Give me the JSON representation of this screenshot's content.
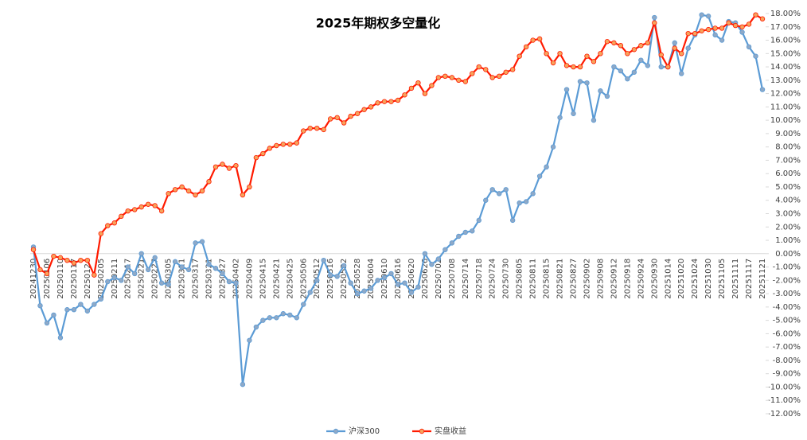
{
  "chart_data": {
    "type": "line",
    "title": "2025年期权多空量化",
    "categories": [
      "20241230",
      null,
      "20250106",
      null,
      "20250110",
      null,
      "20250117",
      null,
      "20250124",
      null,
      "20250205",
      null,
      "20250211",
      null,
      "20250217",
      null,
      "20250221",
      null,
      "20250227",
      null,
      "20250305",
      null,
      "20250311",
      null,
      "20250317",
      null,
      "20250321",
      null,
      "20250327",
      null,
      "20250402",
      null,
      "20250409",
      null,
      "20250415",
      null,
      "20250421",
      null,
      "20250425",
      null,
      "20250506",
      null,
      "20250512",
      null,
      "20250516",
      null,
      "20250522",
      null,
      "20250528",
      null,
      "20250604",
      null,
      "20250610",
      null,
      "20250616",
      null,
      "20250620",
      null,
      "20250626",
      null,
      "20250702",
      null,
      "20250708",
      null,
      "20250714",
      null,
      "20250718",
      null,
      "20250724",
      null,
      "20250730",
      null,
      "20250805",
      null,
      "20250811",
      null,
      "20250815",
      null,
      "20250821",
      null,
      "20250827",
      null,
      "20250902",
      null,
      "20250908",
      null,
      "20250912",
      null,
      "20250918",
      null,
      "20250924",
      null,
      "20250930",
      null,
      "20251014",
      null,
      "20251020",
      null,
      "20251024",
      null,
      "20251030",
      null,
      "20251105",
      null,
      "20251111",
      null,
      "20251117",
      null,
      "20251121"
    ],
    "series": [
      {
        "name": "沪深300",
        "color": "#5b9bd5",
        "marker_color": "#8ea9c8",
        "values": [
          0.5,
          -3.9,
          -5.2,
          -4.6,
          -6.3,
          -4.2,
          -4.2,
          -3.8,
          -4.3,
          -3.8,
          -3.4,
          -2.1,
          -1.8,
          -2.0,
          -1.0,
          -1.5,
          0.0,
          -1.2,
          -0.3,
          -2.2,
          -2.3,
          -0.6,
          -1.0,
          -1.2,
          0.8,
          0.9,
          -0.8,
          -1.1,
          -1.5,
          -2.1,
          -2.2,
          -9.8,
          -6.5,
          -5.5,
          -5.0,
          -4.8,
          -4.8,
          -4.5,
          -4.6,
          -4.8,
          -3.8,
          -2.9,
          -2.0,
          -0.5,
          -1.6,
          -1.7,
          -0.9,
          -2.2,
          -3.0,
          -2.8,
          -2.6,
          -2.0,
          -1.8,
          -1.5,
          -2.3,
          -2.2,
          -2.9,
          -2.5,
          0.0,
          -0.8,
          -0.4,
          0.3,
          0.8,
          1.3,
          1.6,
          1.7,
          2.5,
          4.0,
          4.8,
          4.5,
          4.8,
          2.5,
          3.8,
          3.9,
          4.5,
          5.8,
          6.5,
          8.0,
          10.2,
          12.3,
          10.5,
          12.9,
          12.8,
          10.0,
          12.2,
          11.8,
          14.0,
          13.7,
          13.1,
          13.6,
          14.5,
          14.1,
          17.7,
          14.0,
          14.0,
          15.8,
          13.5,
          15.4,
          16.4,
          17.9,
          17.8,
          16.4,
          16.0,
          17.4,
          17.3,
          16.6,
          15.5,
          14.8,
          12.3
        ]
      },
      {
        "name": "实盘收益",
        "color": "#ff1a00",
        "marker_color": "#f7a35c",
        "values": [
          0.3,
          -1.2,
          -1.5,
          -0.2,
          -0.3,
          -0.5,
          -0.7,
          -0.5,
          -0.5,
          -1.6,
          1.5,
          2.1,
          2.3,
          2.8,
          3.2,
          3.3,
          3.5,
          3.7,
          3.6,
          3.2,
          4.5,
          4.8,
          5.0,
          4.7,
          4.4,
          4.7,
          5.4,
          6.5,
          6.7,
          6.4,
          6.6,
          4.4,
          5.0,
          7.2,
          7.5,
          7.9,
          8.1,
          8.2,
          8.2,
          8.3,
          9.2,
          9.4,
          9.4,
          9.3,
          10.1,
          10.2,
          9.8,
          10.3,
          10.5,
          10.8,
          11.0,
          11.3,
          11.4,
          11.4,
          11.5,
          11.9,
          12.4,
          12.8,
          12.0,
          12.6,
          13.2,
          13.3,
          13.2,
          13.0,
          12.9,
          13.5,
          14.0,
          13.8,
          13.2,
          13.3,
          13.6,
          13.8,
          14.8,
          15.5,
          16.0,
          16.1,
          15.0,
          14.3,
          15.0,
          14.1,
          14.0,
          14.0,
          14.8,
          14.4,
          15.0,
          15.9,
          15.8,
          15.6,
          15.0,
          15.3,
          15.6,
          15.8,
          17.3,
          14.9,
          14.0,
          15.4,
          15.0,
          16.5,
          16.5,
          16.7,
          16.8,
          16.9,
          16.9,
          17.3,
          17.1,
          17.0,
          17.2,
          17.9,
          17.6
        ]
      }
    ],
    "ylim": [
      -12,
      18
    ],
    "yticks": [
      {
        "value": 18,
        "label": "18.00%"
      },
      {
        "value": 17,
        "label": "17.00%"
      },
      {
        "value": 16,
        "label": "16.00%"
      },
      {
        "value": 15,
        "label": "15.00%"
      },
      {
        "value": 14,
        "label": "14.00%"
      },
      {
        "value": 13,
        "label": "13.00%"
      },
      {
        "value": 12,
        "label": "12.00%"
      },
      {
        "value": 11,
        "label": "11.00%"
      },
      {
        "value": 10,
        "label": "10.00%"
      },
      {
        "value": 9,
        "label": "9.00%"
      },
      {
        "value": 8,
        "label": "8.00%"
      },
      {
        "value": 7,
        "label": "7.00%"
      },
      {
        "value": 6,
        "label": "6.00%"
      },
      {
        "value": 5,
        "label": "5.00%"
      },
      {
        "value": 4,
        "label": "4.00%"
      },
      {
        "value": 3,
        "label": "3.00%"
      },
      {
        "value": 2,
        "label": "2.00%"
      },
      {
        "value": 1,
        "label": "1.00%"
      },
      {
        "value": 0,
        "label": "0.00%"
      },
      {
        "value": -1,
        "label": "-1.00%"
      },
      {
        "value": -2,
        "label": "-2.00%"
      },
      {
        "value": -3,
        "label": "-3.00%"
      },
      {
        "value": -4,
        "label": "-4.00%"
      },
      {
        "value": -5,
        "label": "-5.00%"
      },
      {
        "value": -6,
        "label": "-6.00%"
      },
      {
        "value": -7,
        "label": "-7.00%"
      },
      {
        "value": -8,
        "label": "-8.00%"
      },
      {
        "value": -9,
        "label": "-9.00%"
      },
      {
        "value": -10,
        "label": "-10.00%"
      },
      {
        "value": -11,
        "label": "-11.00%"
      },
      {
        "value": -12,
        "label": "-12.00%"
      }
    ],
    "grid": false,
    "legend": "bottom"
  }
}
